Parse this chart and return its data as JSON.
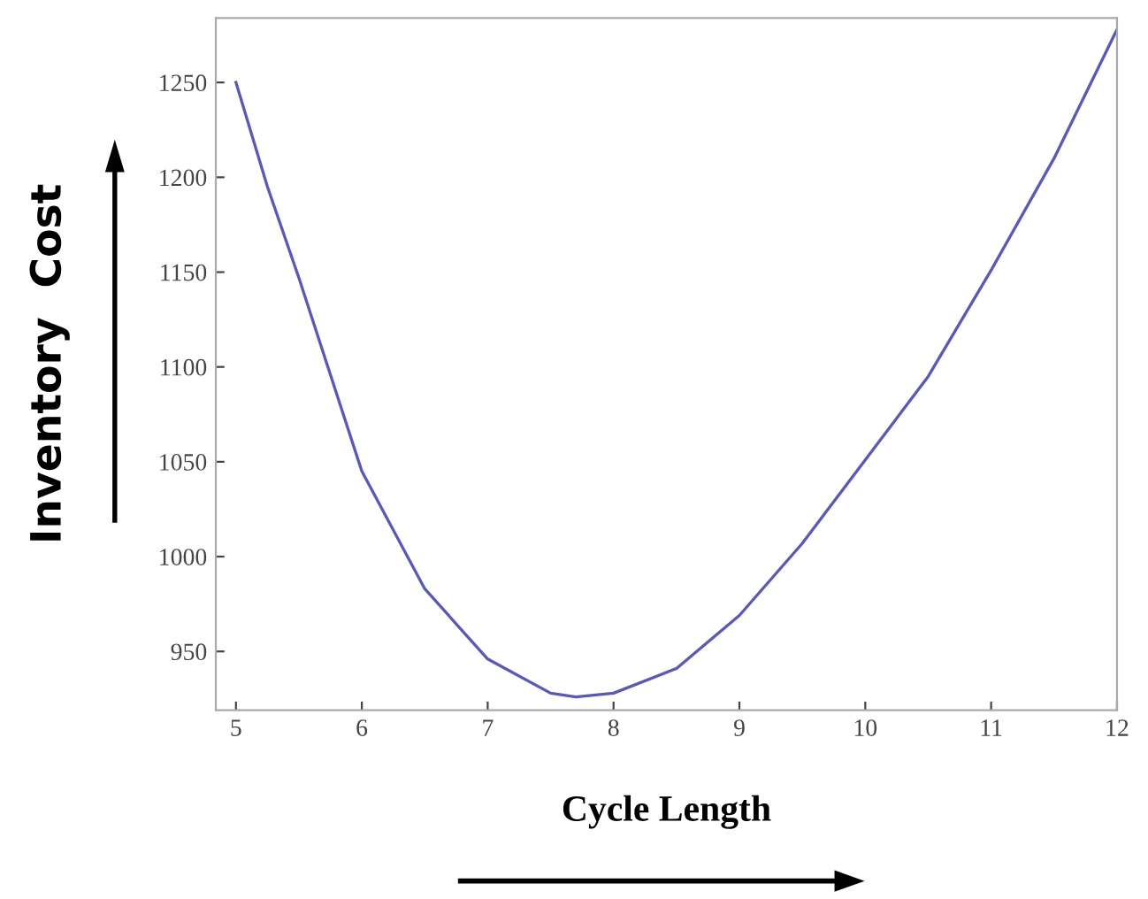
{
  "chart_data": {
    "type": "line",
    "xlabel": "Cycle Length",
    "ylabel": "Inventory  Cost",
    "x": [
      5,
      5.25,
      5.5,
      6,
      6.5,
      7,
      7.5,
      7.7,
      8,
      8.5,
      9,
      9.5,
      10,
      10.5,
      11,
      11.5,
      12
    ],
    "series": [
      {
        "color": "#5a5ab4",
        "values": [
          1250,
          1195,
          1147,
          1045,
          983,
          946,
          928,
          926,
          928,
          941,
          969,
          1007,
          1051,
          1095,
          1151,
          1210,
          1278
        ]
      }
    ],
    "xlim": [
      4.84,
      12
    ],
    "ylim": [
      919,
      1284
    ],
    "xticks": [
      5,
      6,
      7,
      8,
      9,
      10,
      11,
      12
    ],
    "yticks": [
      950,
      1000,
      1050,
      1100,
      1150,
      1200,
      1250
    ],
    "grid": false,
    "legend": false,
    "marker": "none",
    "line_style": "solid"
  }
}
